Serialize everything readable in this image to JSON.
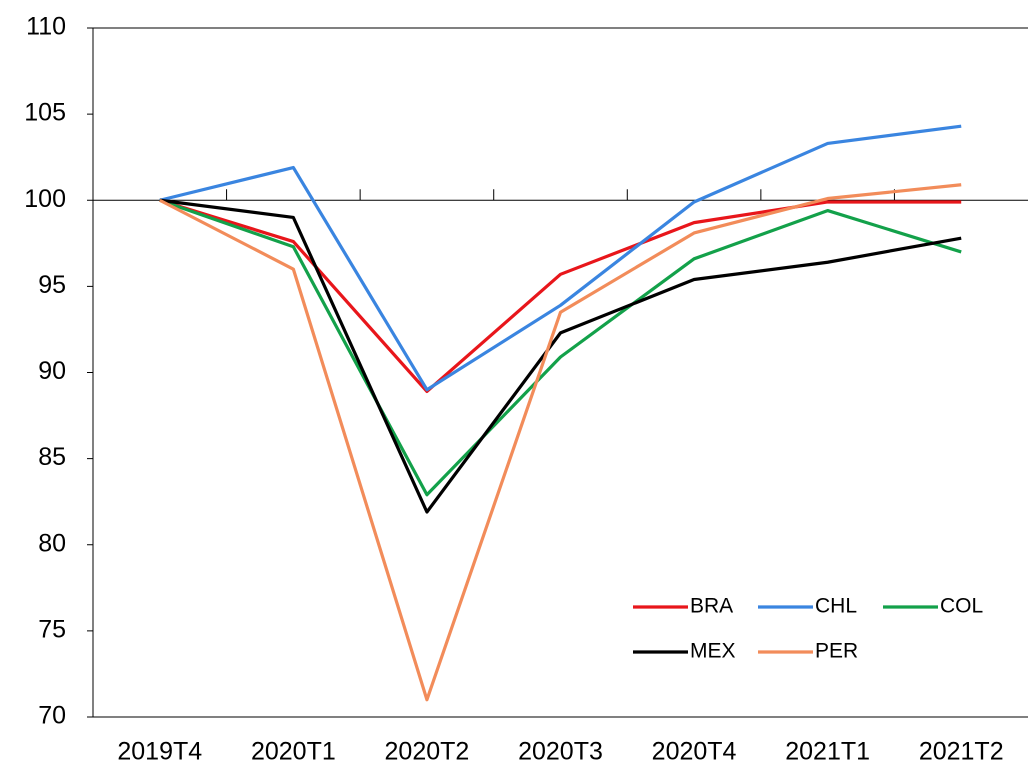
{
  "chart_data": {
    "type": "line",
    "categories": [
      "2019T4",
      "2020T1",
      "2020T2",
      "2020T3",
      "2020T4",
      "2021T1",
      "2021T2"
    ],
    "series": [
      {
        "name": "BRA",
        "color": "#e8161b",
        "values": [
          100,
          97.6,
          88.9,
          95.7,
          98.7,
          99.9,
          99.9
        ]
      },
      {
        "name": "CHL",
        "color": "#3a85e0",
        "values": [
          100,
          101.9,
          89.0,
          93.9,
          99.9,
          103.3,
          104.3
        ]
      },
      {
        "name": "COL",
        "color": "#13a14a",
        "values": [
          100,
          97.3,
          82.9,
          90.9,
          96.6,
          99.4,
          97.0
        ]
      },
      {
        "name": "MEX",
        "color": "#000000",
        "values": [
          100,
          99.0,
          81.9,
          92.3,
          95.4,
          96.4,
          97.8
        ]
      },
      {
        "name": "PER",
        "color": "#f28c5a",
        "values": [
          100,
          96.0,
          71.0,
          93.5,
          98.1,
          100.1,
          100.9
        ]
      }
    ],
    "ylim": [
      70,
      110
    ],
    "yticks": [
      70,
      75,
      80,
      85,
      90,
      95,
      100,
      105,
      110
    ],
    "x_axis_crossing": 100,
    "grid": false,
    "legend": "lower right"
  }
}
